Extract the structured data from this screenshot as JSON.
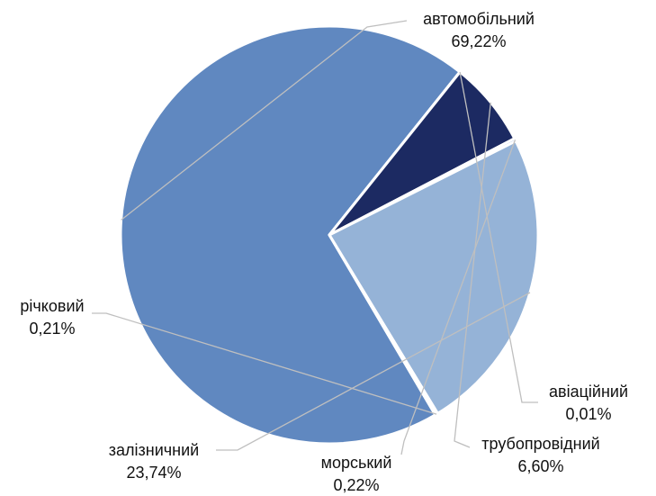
{
  "chart_data": {
    "type": "pie",
    "title": "",
    "categories": [
      "автомобільний",
      "авіаційний",
      "трубопровідний",
      "морський",
      "залізничний",
      "річковий"
    ],
    "values": [
      69.22,
      0.01,
      6.6,
      0.22,
      23.74,
      0.21
    ],
    "value_labels": [
      "69,22%",
      "0,01%",
      "6,60%",
      "0,22%",
      "23,74%",
      "0,21%"
    ],
    "colors": [
      "#6088c0",
      "#6088c0",
      "#1c2a62",
      "#4a78c4",
      "#95b3d7",
      "#6088c0"
    ],
    "start_angle_deg": 149.5,
    "direction": "clockwise",
    "legend": "none",
    "data_labels": "outside-with-leader-lines"
  }
}
